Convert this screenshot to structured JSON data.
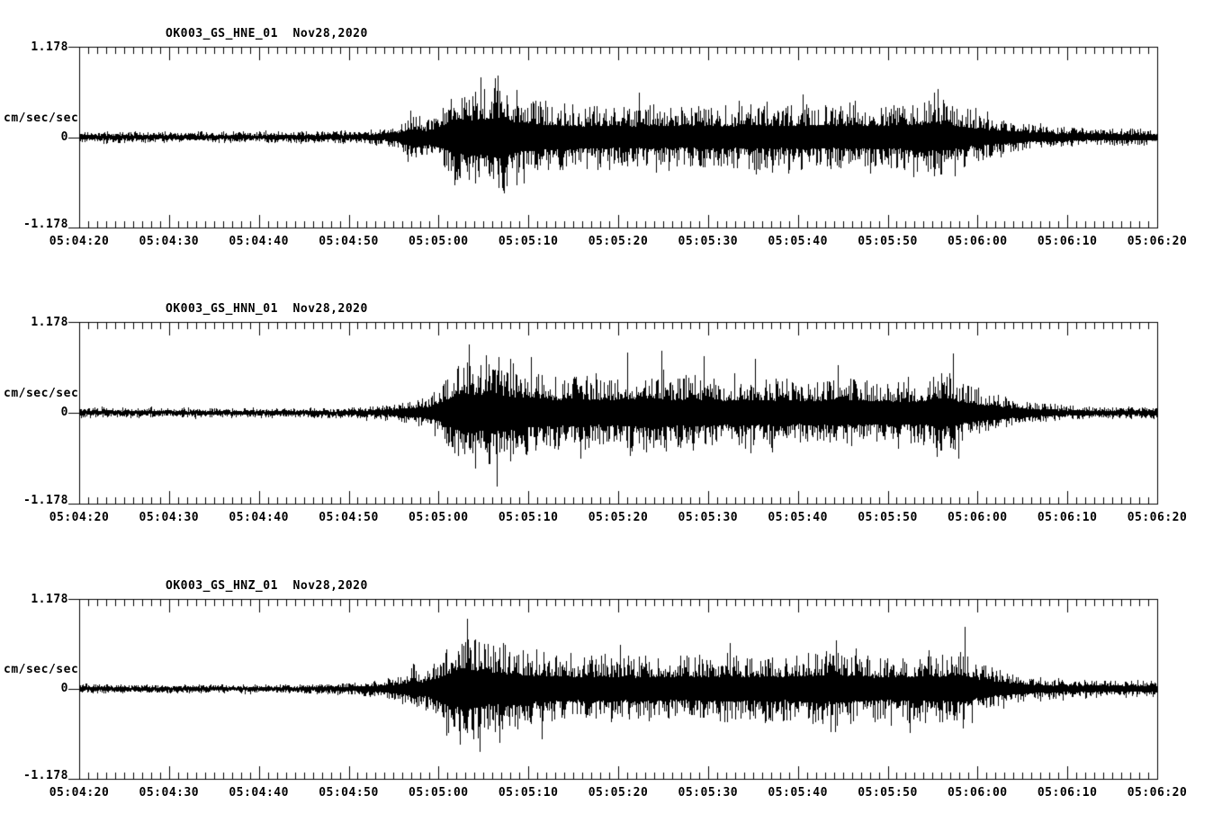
{
  "page": {
    "background": "#ffffff",
    "ink": "#000000"
  },
  "chart_data": [
    {
      "type": "line",
      "kind": "seismogram-helicorder-segment",
      "station_channel": "OK003_GS_HNE_01",
      "date": "Nov28,2020",
      "title": "OK003_GS_HNE_01  Nov28,2020",
      "ylabel": "cm/sec/sec",
      "ylim": [
        -1.178,
        1.178
      ],
      "yticks": [
        "1.178",
        "0",
        "-1.178"
      ],
      "xticks": [
        "05:04:20",
        "05:04:30",
        "05:04:40",
        "05:04:50",
        "05:05:00",
        "05:05:10",
        "05:05:20",
        "05:05:30",
        "05:05:40",
        "05:05:50",
        "05:06:00",
        "05:06:10",
        "05:06:20"
      ],
      "duration_sec": 120,
      "x_minor_step_sec": 1,
      "x_major_step_sec": 10,
      "grid": false,
      "legend": "none",
      "seed": 11,
      "envelope": [
        [
          0,
          0.09
        ],
        [
          1,
          0.075
        ],
        [
          20,
          0.07
        ],
        [
          28,
          0.075
        ],
        [
          32,
          0.09
        ],
        [
          34,
          0.11
        ],
        [
          35.5,
          0.16
        ],
        [
          36.5,
          0.28
        ],
        [
          37.5,
          0.31
        ],
        [
          38.5,
          0.24
        ],
        [
          39.5,
          0.31
        ],
        [
          40.5,
          0.44
        ],
        [
          41.5,
          0.54
        ],
        [
          43,
          0.66
        ],
        [
          44,
          0.63
        ],
        [
          45,
          0.68
        ],
        [
          46,
          0.66
        ],
        [
          47,
          0.74
        ],
        [
          48,
          0.6
        ],
        [
          49,
          0.53
        ],
        [
          51,
          0.48
        ],
        [
          53,
          0.45
        ],
        [
          56,
          0.41
        ],
        [
          59,
          0.43
        ],
        [
          61,
          0.4
        ],
        [
          64,
          0.43
        ],
        [
          66,
          0.39
        ],
        [
          69,
          0.43
        ],
        [
          72,
          0.41
        ],
        [
          75,
          0.43
        ],
        [
          78,
          0.41
        ],
        [
          81,
          0.45
        ],
        [
          84,
          0.41
        ],
        [
          87,
          0.44
        ],
        [
          90,
          0.42
        ],
        [
          92,
          0.45
        ],
        [
          94,
          0.48
        ],
        [
          95.5,
          0.53
        ],
        [
          97,
          0.45
        ],
        [
          98.5,
          0.39
        ],
        [
          100,
          0.33
        ],
        [
          102,
          0.26
        ],
        [
          104,
          0.21
        ],
        [
          106,
          0.17
        ],
        [
          108,
          0.14
        ],
        [
          110,
          0.13
        ],
        [
          114,
          0.11
        ],
        [
          120,
          0.11
        ]
      ],
      "spikes": [
        {
          "t": 36.9,
          "v": 0.34
        },
        {
          "t": 41.8,
          "v": -0.62
        },
        {
          "t": 44.7,
          "v": 0.78
        },
        {
          "t": 46.6,
          "v": 0.8
        },
        {
          "t": 47.3,
          "v": -0.73
        },
        {
          "t": 49.5,
          "v": -0.6
        },
        {
          "t": 62.3,
          "v": 0.58
        },
        {
          "t": 80.5,
          "v": 0.56
        },
        {
          "t": 95.6,
          "v": 0.63
        },
        {
          "t": 97.5,
          "v": -0.5
        }
      ]
    },
    {
      "type": "line",
      "kind": "seismogram-helicorder-segment",
      "station_channel": "OK003_GS_HNN_01",
      "date": "Nov28,2020",
      "title": "OK003_GS_HNN_01  Nov28,2020",
      "ylabel": "cm/sec/sec",
      "ylim": [
        -1.178,
        1.178
      ],
      "yticks": [
        "1.178",
        "0",
        "-1.178"
      ],
      "xticks": [
        "05:04:20",
        "05:04:30",
        "05:04:40",
        "05:04:50",
        "05:05:00",
        "05:05:10",
        "05:05:20",
        "05:05:30",
        "05:05:40",
        "05:05:50",
        "05:06:00",
        "05:06:10",
        "05:06:20"
      ],
      "duration_sec": 120,
      "x_minor_step_sec": 1,
      "x_major_step_sec": 10,
      "grid": false,
      "legend": "none",
      "seed": 47,
      "envelope": [
        [
          0,
          0.085
        ],
        [
          1,
          0.065
        ],
        [
          20,
          0.06
        ],
        [
          28,
          0.065
        ],
        [
          32,
          0.08
        ],
        [
          34,
          0.1
        ],
        [
          36,
          0.14
        ],
        [
          38,
          0.18
        ],
        [
          40,
          0.3
        ],
        [
          41,
          0.47
        ],
        [
          42,
          0.63
        ],
        [
          43,
          0.73
        ],
        [
          44,
          0.67
        ],
        [
          45,
          0.63
        ],
        [
          46,
          0.73
        ],
        [
          47,
          0.61
        ],
        [
          48,
          0.57
        ],
        [
          50,
          0.55
        ],
        [
          52,
          0.51
        ],
        [
          54,
          0.48
        ],
        [
          56,
          0.51
        ],
        [
          58,
          0.45
        ],
        [
          60,
          0.48
        ],
        [
          62,
          0.51
        ],
        [
          64,
          0.53
        ],
        [
          66,
          0.47
        ],
        [
          68,
          0.51
        ],
        [
          70,
          0.47
        ],
        [
          72,
          0.45
        ],
        [
          74,
          0.48
        ],
        [
          76,
          0.44
        ],
        [
          78,
          0.46
        ],
        [
          80,
          0.44
        ],
        [
          82,
          0.46
        ],
        [
          84,
          0.43
        ],
        [
          86,
          0.45
        ],
        [
          88,
          0.42
        ],
        [
          90,
          0.44
        ],
        [
          92,
          0.41
        ],
        [
          94,
          0.44
        ],
        [
          95.5,
          0.51
        ],
        [
          97,
          0.53
        ],
        [
          98,
          0.41
        ],
        [
          99.5,
          0.34
        ],
        [
          101,
          0.28
        ],
        [
          103,
          0.21
        ],
        [
          105,
          0.16
        ],
        [
          107,
          0.12
        ],
        [
          109,
          0.1
        ],
        [
          112,
          0.085
        ],
        [
          116,
          0.075
        ],
        [
          120,
          0.075
        ]
      ],
      "spikes": [
        {
          "t": 43.4,
          "v": 0.89
        },
        {
          "t": 44.1,
          "v": -0.72
        },
        {
          "t": 46.5,
          "v": -0.96
        },
        {
          "t": 48,
          "v": 0.7
        },
        {
          "t": 50.3,
          "v": 0.72
        },
        {
          "t": 55.8,
          "v": -0.6
        },
        {
          "t": 61,
          "v": 0.78
        },
        {
          "t": 64.8,
          "v": 0.8
        },
        {
          "t": 69.5,
          "v": 0.73
        },
        {
          "t": 75.2,
          "v": 0.7
        },
        {
          "t": 84.4,
          "v": 0.62
        },
        {
          "t": 97.3,
          "v": 0.77
        },
        {
          "t": 97.9,
          "v": -0.6
        }
      ]
    },
    {
      "type": "line",
      "kind": "seismogram-helicorder-segment",
      "station_channel": "OK003_GS_HNZ_01",
      "date": "Nov28,2020",
      "title": "OK003_GS_HNZ_01  Nov28,2020",
      "ylabel": "cm/sec/sec",
      "ylim": [
        -1.178,
        1.178
      ],
      "yticks": [
        "1.178",
        "0",
        "-1.178"
      ],
      "xticks": [
        "05:04:20",
        "05:04:30",
        "05:04:40",
        "05:04:50",
        "05:05:00",
        "05:05:10",
        "05:05:20",
        "05:05:30",
        "05:05:40",
        "05:05:50",
        "05:06:00",
        "05:06:10",
        "05:06:20"
      ],
      "duration_sec": 120,
      "x_minor_step_sec": 1,
      "x_major_step_sec": 10,
      "grid": false,
      "legend": "none",
      "seed": 83,
      "envelope": [
        [
          0,
          0.08
        ],
        [
          1,
          0.06
        ],
        [
          15,
          0.055
        ],
        [
          25,
          0.06
        ],
        [
          30,
          0.08
        ],
        [
          32,
          0.1
        ],
        [
          34,
          0.13
        ],
        [
          36,
          0.18
        ],
        [
          37,
          0.29
        ],
        [
          38,
          0.24
        ],
        [
          39,
          0.31
        ],
        [
          40,
          0.44
        ],
        [
          41,
          0.56
        ],
        [
          42,
          0.7
        ],
        [
          43,
          0.78
        ],
        [
          44,
          0.68
        ],
        [
          45,
          0.61
        ],
        [
          46,
          0.57
        ],
        [
          47,
          0.61
        ],
        [
          48,
          0.55
        ],
        [
          50,
          0.51
        ],
        [
          52,
          0.47
        ],
        [
          55,
          0.44
        ],
        [
          58,
          0.46
        ],
        [
          60,
          0.43
        ],
        [
          63,
          0.45
        ],
        [
          65,
          0.42
        ],
        [
          68,
          0.44
        ],
        [
          70,
          0.45
        ],
        [
          72,
          0.48
        ],
        [
          74,
          0.44
        ],
        [
          76,
          0.45
        ],
        [
          78,
          0.43
        ],
        [
          80,
          0.47
        ],
        [
          82,
          0.49
        ],
        [
          84,
          0.51
        ],
        [
          86,
          0.47
        ],
        [
          88,
          0.44
        ],
        [
          90,
          0.42
        ],
        [
          92,
          0.44
        ],
        [
          94,
          0.45
        ],
        [
          96,
          0.47
        ],
        [
          98,
          0.49
        ],
        [
          99,
          0.43
        ],
        [
          100,
          0.35
        ],
        [
          102,
          0.26
        ],
        [
          104,
          0.19
        ],
        [
          106,
          0.15
        ],
        [
          108,
          0.13
        ],
        [
          110,
          0.12
        ],
        [
          115,
          0.11
        ],
        [
          120,
          0.11
        ]
      ],
      "spikes": [
        {
          "t": 37.2,
          "v": 0.33
        },
        {
          "t": 43.2,
          "v": 0.92
        },
        {
          "t": 44.6,
          "v": -0.83
        },
        {
          "t": 46.8,
          "v": -0.71
        },
        {
          "t": 51.5,
          "v": -0.66
        },
        {
          "t": 60.2,
          "v": 0.58
        },
        {
          "t": 72.4,
          "v": 0.6
        },
        {
          "t": 84.2,
          "v": 0.64
        },
        {
          "t": 92.5,
          "v": -0.58
        },
        {
          "t": 98.6,
          "v": 0.81
        }
      ]
    }
  ]
}
